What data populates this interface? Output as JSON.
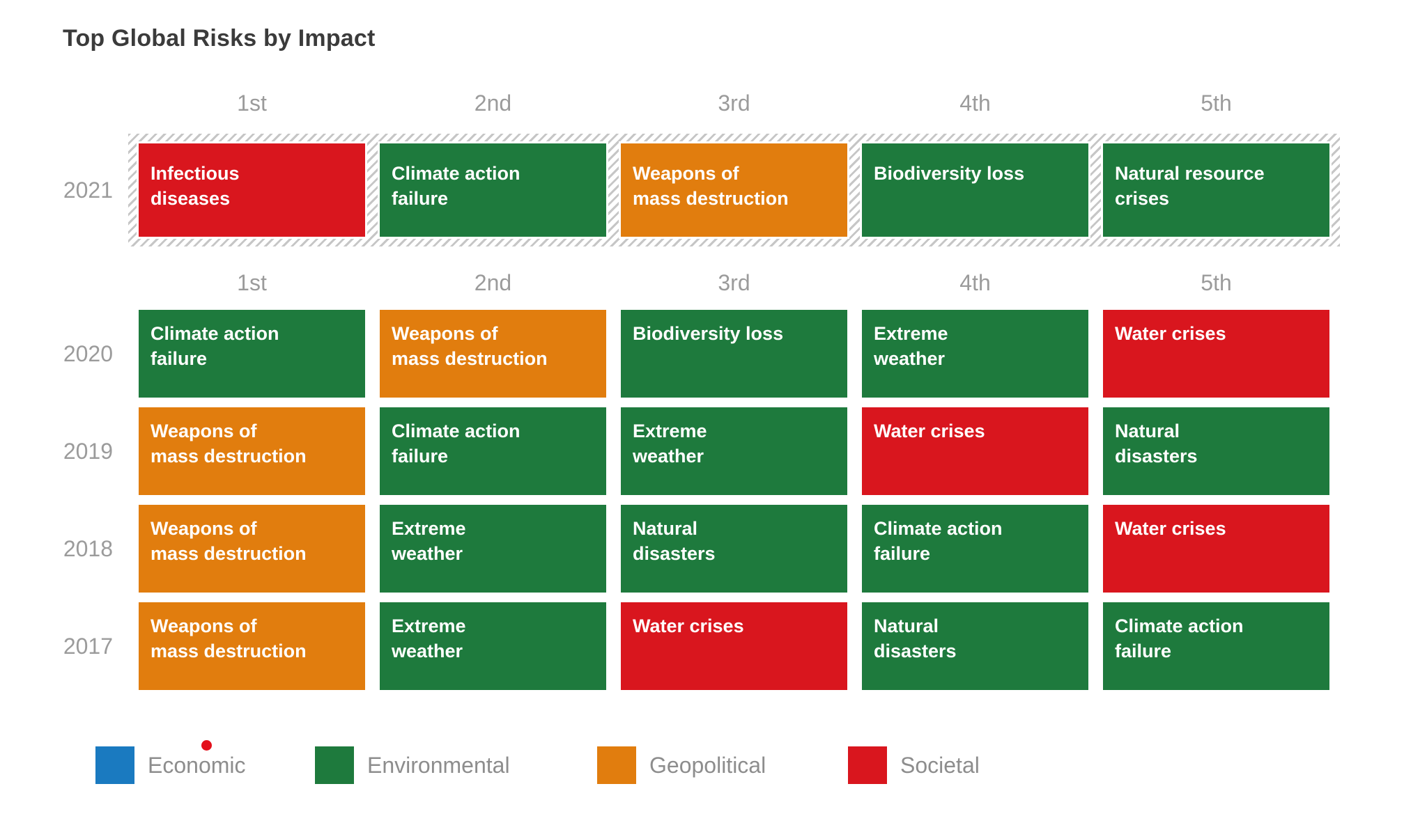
{
  "title": "Top Global Risks by Impact",
  "colors": {
    "economic": "#1a7ac0",
    "environmental": "#1e7a3d",
    "geopolitical": "#e17d0e",
    "societal": "#d9161e"
  },
  "chart_data": {
    "type": "table",
    "title": "Top Global Risks by Impact",
    "columns": [
      "1st",
      "2nd",
      "3rd",
      "4th",
      "5th"
    ],
    "rows": [
      {
        "year": "2021",
        "highlighted": true,
        "cells": [
          {
            "label": "Infectious diseases",
            "lines": [
              "Infectious",
              "diseases"
            ],
            "category": "societal"
          },
          {
            "label": "Climate action failure",
            "lines": [
              "Climate action",
              "failure"
            ],
            "category": "environmental"
          },
          {
            "label": "Weapons of mass destruction",
            "lines": [
              "Weapons of",
              "mass destruction"
            ],
            "category": "geopolitical"
          },
          {
            "label": "Biodiversity loss",
            "lines": [
              "Biodiversity loss"
            ],
            "category": "environmental"
          },
          {
            "label": "Natural resource crises",
            "lines": [
              "Natural resource",
              "crises"
            ],
            "category": "environmental"
          }
        ]
      },
      {
        "year": "2020",
        "highlighted": false,
        "cells": [
          {
            "label": "Climate action failure",
            "lines": [
              "Climate action",
              "failure"
            ],
            "category": "environmental"
          },
          {
            "label": "Weapons of mass destruction",
            "lines": [
              "Weapons of",
              "mass destruction"
            ],
            "category": "geopolitical"
          },
          {
            "label": "Biodiversity loss",
            "lines": [
              "Biodiversity loss"
            ],
            "category": "environmental"
          },
          {
            "label": "Extreme weather",
            "lines": [
              "Extreme",
              "weather"
            ],
            "category": "environmental"
          },
          {
            "label": "Water crises",
            "lines": [
              "Water crises"
            ],
            "category": "societal"
          }
        ]
      },
      {
        "year": "2019",
        "highlighted": false,
        "cells": [
          {
            "label": "Weapons of mass destruction",
            "lines": [
              "Weapons of",
              "mass destruction"
            ],
            "category": "geopolitical"
          },
          {
            "label": "Climate action failure",
            "lines": [
              "Climate action",
              "failure"
            ],
            "category": "environmental"
          },
          {
            "label": "Extreme weather",
            "lines": [
              "Extreme",
              "weather"
            ],
            "category": "environmental"
          },
          {
            "label": "Water crises",
            "lines": [
              "Water crises"
            ],
            "category": "societal"
          },
          {
            "label": "Natural disasters",
            "lines": [
              "Natural",
              "disasters"
            ],
            "category": "environmental"
          }
        ]
      },
      {
        "year": "2018",
        "highlighted": false,
        "cells": [
          {
            "label": "Weapons of mass destruction",
            "lines": [
              "Weapons of",
              "mass destruction"
            ],
            "category": "geopolitical"
          },
          {
            "label": "Extreme weather",
            "lines": [
              "Extreme",
              "weather"
            ],
            "category": "environmental"
          },
          {
            "label": "Natural disasters",
            "lines": [
              "Natural",
              "disasters"
            ],
            "category": "environmental"
          },
          {
            "label": "Climate action failure",
            "lines": [
              "Climate action",
              "failure"
            ],
            "category": "environmental"
          },
          {
            "label": "Water crises",
            "lines": [
              "Water crises"
            ],
            "category": "societal"
          }
        ]
      },
      {
        "year": "2017",
        "highlighted": false,
        "cells": [
          {
            "label": "Weapons of mass destruction",
            "lines": [
              "Weapons of",
              "mass destruction"
            ],
            "category": "geopolitical"
          },
          {
            "label": "Extreme weather",
            "lines": [
              "Extreme",
              "weather"
            ],
            "category": "environmental"
          },
          {
            "label": "Water crises",
            "lines": [
              "Water crises"
            ],
            "category": "societal"
          },
          {
            "label": "Natural disasters",
            "lines": [
              "Natural",
              "disasters"
            ],
            "category": "environmental"
          },
          {
            "label": "Climate action failure",
            "lines": [
              "Climate action",
              "failure"
            ],
            "category": "environmental"
          }
        ]
      }
    ],
    "legend": [
      {
        "label": "Economic",
        "category": "economic"
      },
      {
        "label": "Environmental",
        "category": "environmental"
      },
      {
        "label": "Geopolitical",
        "category": "geopolitical"
      },
      {
        "label": "Societal",
        "category": "societal"
      }
    ],
    "legend_position": "bottom"
  }
}
